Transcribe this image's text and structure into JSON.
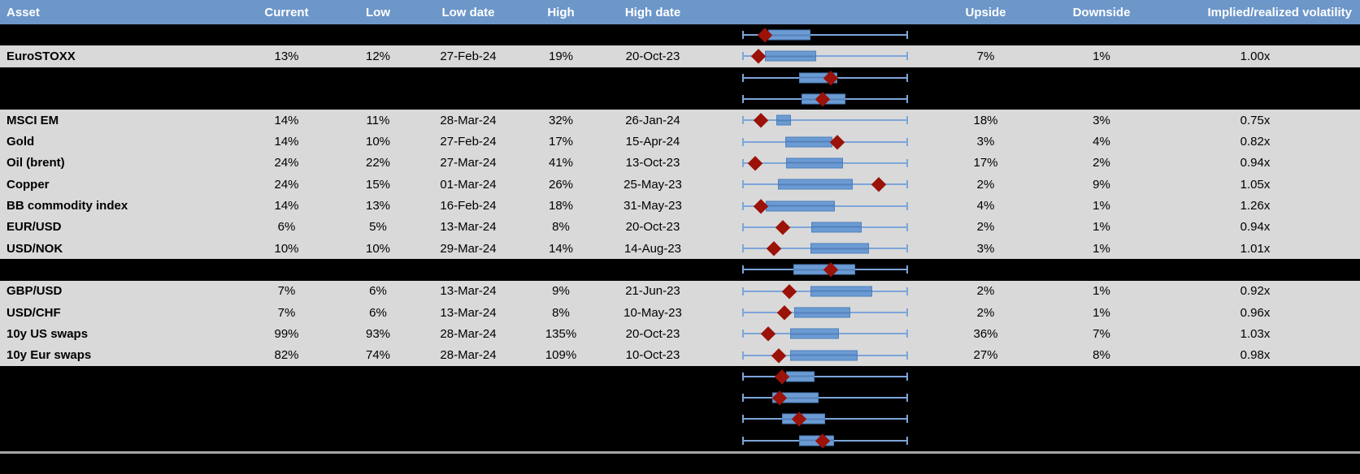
{
  "table": {
    "columns": [
      "Asset",
      "Current",
      "Low",
      "Low date",
      "High",
      "High date",
      "",
      "Upside",
      "Downside",
      "Implied/realized volatility"
    ],
    "rows": [
      {
        "kind": "hidden",
        "plot": {
          "box": [
            0.157,
            0.412
          ],
          "marker": 0.137
        }
      },
      {
        "kind": "data",
        "asset": "EuroSTOXX",
        "current": "13%",
        "low": "12%",
        "low_date": "27-Feb-24",
        "high": "19%",
        "high_date": "20-Oct-23",
        "upside": "7%",
        "downside": "1%",
        "vol": "1.00x",
        "plot": {
          "box": [
            0.137,
            0.446
          ],
          "marker": 0.098
        }
      },
      {
        "kind": "hidden",
        "plot": {
          "box": [
            0.343,
            0.574
          ],
          "marker": 0.534
        }
      },
      {
        "kind": "hidden",
        "plot": {
          "box": [
            0.358,
            0.623
          ],
          "marker": 0.485
        }
      },
      {
        "kind": "data",
        "asset": "MSCI EM",
        "current": "14%",
        "low": "11%",
        "low_date": "28-Mar-24",
        "high": "32%",
        "high_date": "26-Jan-24",
        "upside": "18%",
        "downside": "3%",
        "vol": "0.75x",
        "plot": {
          "box": [
            0.206,
            0.294
          ],
          "marker": 0.115
        }
      },
      {
        "kind": "data",
        "asset": "Gold",
        "current": "14%",
        "low": "10%",
        "low_date": "27-Feb-24",
        "high": "17%",
        "high_date": "15-Apr-24",
        "upside": "3%",
        "downside": "4%",
        "vol": "0.82x",
        "plot": {
          "box": [
            0.26,
            0.545
          ],
          "marker": 0.573
        }
      },
      {
        "kind": "data",
        "asset": "Oil (brent)",
        "current": "24%",
        "low": "22%",
        "low_date": "27-Mar-24",
        "high": "41%",
        "high_date": "13-Oct-23",
        "upside": "17%",
        "downside": "2%",
        "vol": "0.94x",
        "plot": {
          "box": [
            0.265,
            0.608
          ],
          "marker": 0.078
        }
      },
      {
        "kind": "data",
        "asset": "Copper",
        "current": "24%",
        "low": "15%",
        "low_date": "01-Mar-24",
        "high": "26%",
        "high_date": "25-May-23",
        "upside": "2%",
        "downside": "9%",
        "vol": "1.05x",
        "plot": {
          "box": [
            0.216,
            0.667
          ],
          "marker": 0.824
        }
      },
      {
        "kind": "data",
        "asset": "BB commodity index",
        "current": "14%",
        "low": "13%",
        "low_date": "16-Feb-24",
        "high": "18%",
        "high_date": "31-May-23",
        "upside": "4%",
        "downside": "1%",
        "vol": "1.26x",
        "plot": {
          "box": [
            0.14,
            0.559
          ],
          "marker": 0.115
        }
      },
      {
        "kind": "data",
        "asset": "EUR/USD",
        "current": "6%",
        "low": "5%",
        "low_date": "13-Mar-24",
        "high": "8%",
        "high_date": "20-Oct-23",
        "upside": "2%",
        "downside": "1%",
        "vol": "0.94x",
        "plot": {
          "box": [
            0.417,
            0.721
          ],
          "marker": 0.243
        }
      },
      {
        "kind": "data",
        "asset": "USD/NOK",
        "current": "10%",
        "low": "10%",
        "low_date": "29-Mar-24",
        "high": "14%",
        "high_date": "14-Aug-23",
        "upside": "3%",
        "downside": "1%",
        "vol": "1.01x",
        "plot": {
          "box": [
            0.412,
            0.765
          ],
          "marker": 0.191
        }
      },
      {
        "kind": "hidden",
        "plot": {
          "box": [
            0.309,
            0.681
          ],
          "marker": 0.534
        }
      },
      {
        "kind": "data",
        "asset": "GBP/USD",
        "current": "7%",
        "low": "6%",
        "low_date": "13-Mar-24",
        "high": "9%",
        "high_date": "21-Jun-23",
        "upside": "2%",
        "downside": "1%",
        "vol": "0.92x",
        "plot": {
          "box": [
            0.412,
            0.784
          ],
          "marker": 0.284
        }
      },
      {
        "kind": "data",
        "asset": "USD/CHF",
        "current": "7%",
        "low": "6%",
        "low_date": "13-Mar-24",
        "high": "8%",
        "high_date": "10-May-23",
        "upside": "2%",
        "downside": "1%",
        "vol": "0.96x",
        "plot": {
          "box": [
            0.314,
            0.652
          ],
          "marker": 0.255
        }
      },
      {
        "kind": "data",
        "asset": "10y US swaps",
        "current": "99%",
        "low": "93%",
        "low_date": "28-Mar-24",
        "high": "135%",
        "high_date": "20-Oct-23",
        "upside": "36%",
        "downside": "7%",
        "vol": "1.03x",
        "plot": {
          "box": [
            0.289,
            0.583
          ],
          "marker": 0.157
        }
      },
      {
        "kind": "data",
        "asset": "10y Eur swaps",
        "current": "82%",
        "low": "74%",
        "low_date": "28-Mar-24",
        "high": "109%",
        "high_date": "10-Oct-23",
        "upside": "27%",
        "downside": "8%",
        "vol": "0.98x",
        "plot": {
          "box": [
            0.289,
            0.696
          ],
          "marker": 0.221
        }
      },
      {
        "kind": "hidden",
        "plot": {
          "box": [
            0.265,
            0.436
          ],
          "marker": 0.24
        }
      },
      {
        "kind": "hidden",
        "plot": {
          "box": [
            0.181,
            0.461
          ],
          "marker": 0.226
        }
      },
      {
        "kind": "hidden",
        "plot": {
          "box": [
            0.24,
            0.5
          ],
          "marker": 0.343
        }
      },
      {
        "kind": "hidden",
        "plot": {
          "box": [
            0.343,
            0.554
          ],
          "marker": 0.486
        }
      }
    ]
  },
  "colors": {
    "header_bg": "#6D96C9",
    "row_bg": "#D9D9D9",
    "hidden_bg": "#000000",
    "box_fill": "#6C9BD3",
    "box_border": "#4D80BD",
    "whisker": "#7CA5DA",
    "marker": "#9B1208",
    "footer_line": "#A6A6A6"
  }
}
